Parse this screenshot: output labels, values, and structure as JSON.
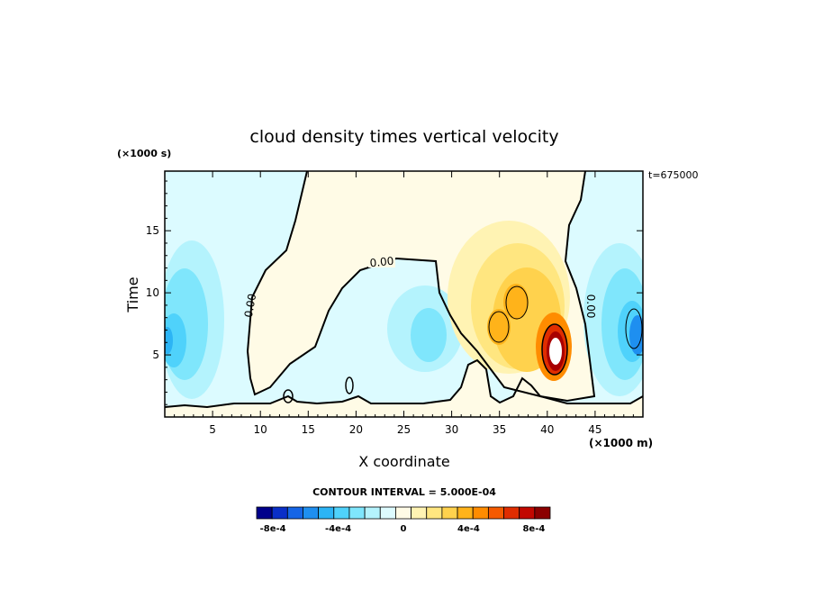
{
  "chart_data": {
    "type": "contour",
    "title": "cloud density times vertical velocity",
    "xlabel": "X coordinate",
    "xunit": "(×1000 m)",
    "ylabel": "Time",
    "yunit": "(×1000 s)",
    "time_stamp": "t=675000",
    "xlim": [
      0,
      50
    ],
    "ylim": [
      0,
      19.8
    ],
    "xticks": [
      "5",
      "10",
      "15",
      "20",
      "25",
      "30",
      "35",
      "40",
      "45"
    ],
    "xtick_values": [
      5,
      10,
      15,
      20,
      25,
      30,
      35,
      40,
      45
    ],
    "yticks": [
      "5",
      "10",
      "15"
    ],
    "ytick_values": [
      5,
      10,
      15
    ],
    "contour_interval_text": "CONTOUR INTERVAL = 5.000E-04",
    "zero_contour_label": "0.00",
    "colorbar": {
      "labels": [
        "-8e-4",
        "-4e-4",
        "0",
        "4e-4",
        "8e-4"
      ],
      "label_values": [
        -0.0008,
        -0.0004,
        0,
        0.0004,
        0.0008
      ],
      "colors": [
        "#00008b",
        "#0a2fc8",
        "#1565e6",
        "#1e8ff0",
        "#2cb4f5",
        "#4fd2fb",
        "#7fe6fc",
        "#b4f3fd",
        "#ddfbfe",
        "#fffbe6",
        "#fff3b3",
        "#ffe680",
        "#ffd24d",
        "#ffb31a",
        "#ff8c00",
        "#f55a00",
        "#e02d00",
        "#c20800",
        "#8b0000"
      ],
      "bounds": [
        -0.0009,
        0.0009
      ]
    },
    "features": [
      {
        "kind": "negative",
        "x": 2,
        "y": 7,
        "rx": 3.2,
        "ry": 6.5,
        "value": -0.00045
      },
      {
        "kind": "negative",
        "x": 0.5,
        "y": 6.5,
        "rx": 1.2,
        "ry": 2,
        "value": -0.0006
      },
      {
        "kind": "negative",
        "x": 28,
        "y": 7,
        "rx": 3.5,
        "ry": 4,
        "value": -0.0003
      },
      {
        "kind": "negative",
        "x": 47.5,
        "y": 7,
        "rx": 3.5,
        "ry": 6,
        "value": -0.0005
      },
      {
        "kind": "negative",
        "x": 49,
        "y": 6.5,
        "rx": 1.2,
        "ry": 2,
        "value": -0.0008
      },
      {
        "kind": "positive",
        "x": 36,
        "y": 9,
        "rx": 6.5,
        "ry": 8.5,
        "value": 0.0002
      },
      {
        "kind": "positive",
        "x": 38,
        "y": 6.5,
        "rx": 4,
        "ry": 5,
        "value": 0.0004
      },
      {
        "kind": "positive",
        "x": 36.5,
        "y": 10,
        "rx": 2,
        "ry": 2.2,
        "value": 0.0006
      },
      {
        "kind": "positive",
        "x": 34.8,
        "y": 7.2,
        "rx": 1.4,
        "ry": 2.2,
        "value": 0.0006
      },
      {
        "kind": "positive",
        "x": 40.8,
        "y": 5.5,
        "rx": 1.8,
        "ry": 3.5,
        "value": 0.0009
      }
    ]
  }
}
